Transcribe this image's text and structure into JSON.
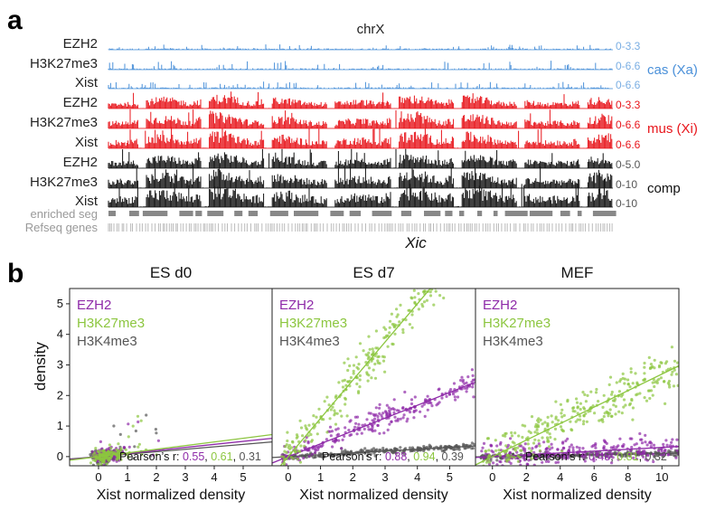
{
  "panel_a": {
    "letter": "a",
    "chromosome": "chrX",
    "locus": "Xic",
    "groups": [
      {
        "label": "cas (Xa)",
        "color": "#4a90d9",
        "tracks": [
          {
            "name": "EZH2",
            "range": "0-3.3"
          },
          {
            "name": "H3K27me3",
            "range": "0-6.6"
          },
          {
            "name": "Xist",
            "range": "0-6.6"
          }
        ]
      },
      {
        "label": "mus (Xi)",
        "color": "#e8151b",
        "tracks": [
          {
            "name": "EZH2",
            "range": "0-3.3"
          },
          {
            "name": "H3K27me3",
            "range": "0-6.6"
          },
          {
            "name": "Xist",
            "range": "0-6.6"
          }
        ]
      },
      {
        "label": "comp",
        "color": "#111111",
        "tracks": [
          {
            "name": "EZH2",
            "range": "0-5.0"
          },
          {
            "name": "H3K27me3",
            "range": "0-10"
          },
          {
            "name": "Xist",
            "range": "0-10"
          }
        ]
      }
    ],
    "annotation_tracks": [
      "enriched seg",
      "Refseq genes"
    ]
  },
  "panel_b": {
    "letter": "b"
  },
  "chart_data": [
    {
      "type": "scatter",
      "title": "ES d0",
      "xlabel": "Xist normalized density",
      "ylabel": "density",
      "xlim": [
        -1,
        6
      ],
      "ylim": [
        -0.3,
        5.5
      ],
      "xticks": [
        "0",
        "1",
        "2",
        "3",
        "4",
        "5"
      ],
      "yticks": [
        "0",
        "1",
        "2",
        "3",
        "4",
        "5"
      ],
      "legend": [
        {
          "name": "EZH2",
          "color": "#8e2aa8"
        },
        {
          "name": "H3K27me3",
          "color": "#8cc63f"
        },
        {
          "name": "H3K4me3",
          "color": "#555555"
        }
      ],
      "pearson": {
        "label": "Pearson’s r:",
        "values": [
          "0.55",
          "0.61",
          "0.31"
        ],
        "separators": [
          ",",
          ","
        ]
      },
      "series": [
        {
          "name": "EZH2",
          "slope": 0.1,
          "n": 110,
          "spread": 0.8
        },
        {
          "name": "H3K27me3",
          "slope": 0.12,
          "n": 140,
          "spread": 0.9
        },
        {
          "name": "H3K4me3",
          "slope": 0.08,
          "n": 120,
          "spread": 0.8
        }
      ]
    },
    {
      "type": "scatter",
      "title": "ES d7",
      "xlabel": "Xist normalized density",
      "ylabel": "",
      "xlim": [
        -0.5,
        5.8
      ],
      "ylim": [
        -0.3,
        5.5
      ],
      "xticks": [
        "0",
        "1",
        "2",
        "3",
        "4",
        "5"
      ],
      "yticks": [],
      "legend": [
        {
          "name": "EZH2",
          "color": "#8e2aa8"
        },
        {
          "name": "H3K27me3",
          "color": "#8cc63f"
        },
        {
          "name": "H3K4me3",
          "color": "#555555"
        }
      ],
      "pearson": {
        "label": "Pearson’s r:",
        "values": [
          "0.88",
          "0.94",
          "0.39"
        ],
        "separators": [
          ",",
          ","
        ]
      },
      "series": [
        {
          "name": "EZH2",
          "slope": 0.42,
          "n": 260
        },
        {
          "name": "H3K27me3",
          "slope": 1.25,
          "n": 320
        },
        {
          "name": "H3K4me3",
          "slope": 0.06,
          "n": 260
        }
      ]
    },
    {
      "type": "scatter",
      "title": "MEF",
      "xlabel": "Xist normalized density",
      "ylabel": "",
      "xlim": [
        -1,
        11
      ],
      "ylim": [
        -0.3,
        5.5
      ],
      "xticks": [
        "0",
        "2",
        "4",
        "6",
        "8",
        "10"
      ],
      "yticks": [],
      "legend": [
        {
          "name": "EZH2",
          "color": "#8e2aa8"
        },
        {
          "name": "H3K27me3",
          "color": "#8cc63f"
        },
        {
          "name": "H3K4me3",
          "color": "#555555"
        }
      ],
      "pearson": {
        "label": "Pearson’s r:",
        "values": [
          "0.48",
          "0.81",
          "0.32"
        ],
        "separators": [
          ",",
          ","
        ]
      },
      "series": [
        {
          "name": "EZH2",
          "slope": 0.03,
          "n": 260
        },
        {
          "name": "H3K27me3",
          "slope": 0.27,
          "n": 300
        },
        {
          "name": "H3K4me3",
          "slope": 0.01,
          "n": 260
        }
      ]
    }
  ]
}
